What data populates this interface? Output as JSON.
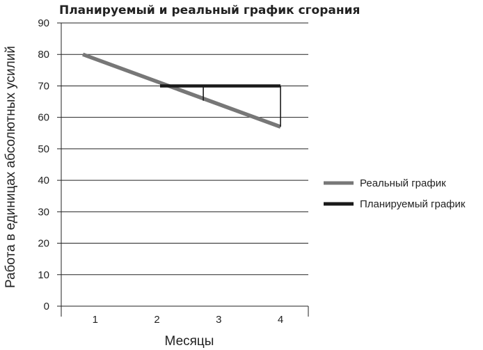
{
  "chart_data": {
    "type": "line",
    "title": "Планируемый и реальный график сгорания",
    "xlabel": "Месяцы",
    "ylabel": "Работа в единицах абсолютных усилий",
    "ylim": [
      0,
      90
    ],
    "yticks": [
      "0",
      "10",
      "20",
      "30",
      "40",
      "50",
      "60",
      "70",
      "80",
      "90"
    ],
    "xlim": [
      0.45,
      4.45
    ],
    "xticks": [
      {
        "label": "1",
        "x": 1
      },
      {
        "label": "2",
        "x": 2
      },
      {
        "label": "3",
        "x": 3
      },
      {
        "label": "4",
        "x": 4
      }
    ],
    "grid": "horizontal",
    "legend_position": "right",
    "series": [
      {
        "name": "Реальный график",
        "color": "#777777",
        "points": [
          [
            0.8,
            80
          ],
          [
            4.0,
            57
          ]
        ]
      },
      {
        "name": "Планируемый график",
        "color": "#1a1a1a",
        "points": [
          [
            2.05,
            70
          ],
          [
            4.0,
            70
          ]
        ],
        "drops": [
          [
            2.75,
            70,
            65.3
          ],
          [
            4.0,
            70,
            57
          ]
        ]
      }
    ]
  }
}
